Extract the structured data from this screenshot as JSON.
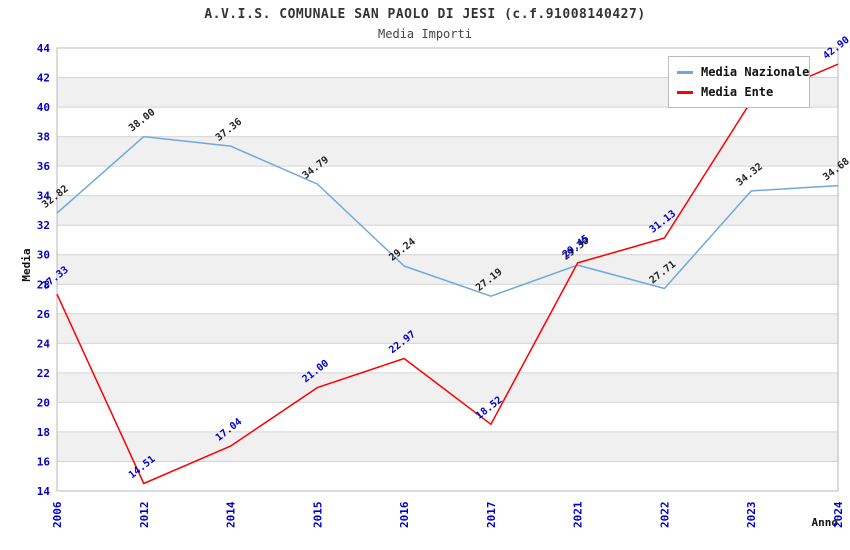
{
  "header": {
    "title": "A.V.I.S. COMUNALE SAN PAOLO DI JESI (c.f.91008140427)",
    "subtitle": "Media Importi"
  },
  "legend": {
    "position": "top-right",
    "items": [
      {
        "label": "Media Nazionale",
        "color": "#6fa8dc"
      },
      {
        "label": "Media Ente",
        "color": "#ff0000"
      }
    ]
  },
  "chart_data": {
    "type": "line",
    "title": "A.V.I.S. COMUNALE SAN PAOLO DI JESI (c.f.91008140427)",
    "subtitle": "Media Importi",
    "xlabel": "Anno",
    "ylabel": "Media",
    "categories": [
      "2006",
      "2012",
      "2014",
      "2015",
      "2016",
      "2017",
      "2021",
      "2022",
      "2023",
      "2024"
    ],
    "ylim": [
      14,
      44
    ],
    "ytick_step": 2,
    "grid": "horizontal-with-alternating-bands",
    "legend_position": "top-right",
    "series": [
      {
        "name": "Media Nazionale",
        "color": "#6fa8dc",
        "label_color": "#222222",
        "values": [
          32.82,
          38.0,
          37.36,
          34.79,
          29.24,
          27.19,
          29.3,
          27.71,
          34.32,
          34.68
        ],
        "labels": [
          "32.82",
          "38.00",
          "37.36",
          "34.79",
          "29.24",
          "27.19",
          "29.30",
          "27.71",
          "34.32",
          "34.68"
        ]
      },
      {
        "name": "Media Ente",
        "color": "#ff0000",
        "label_color": "#0000cc",
        "values": [
          27.33,
          14.51,
          17.04,
          21.0,
          22.97,
          18.52,
          29.45,
          31.13,
          40.4,
          42.9
        ],
        "labels": [
          "27.33",
          "14.51",
          "17.04",
          "21.00",
          "22.97",
          "18.52",
          "29.45",
          "31.13",
          "",
          "42.90"
        ]
      }
    ]
  },
  "colors": {
    "tick_label": "#0000cc",
    "gridline": "#d4d4d4",
    "band": "#f0f0f0",
    "plot_border": "#b8b8b8"
  }
}
